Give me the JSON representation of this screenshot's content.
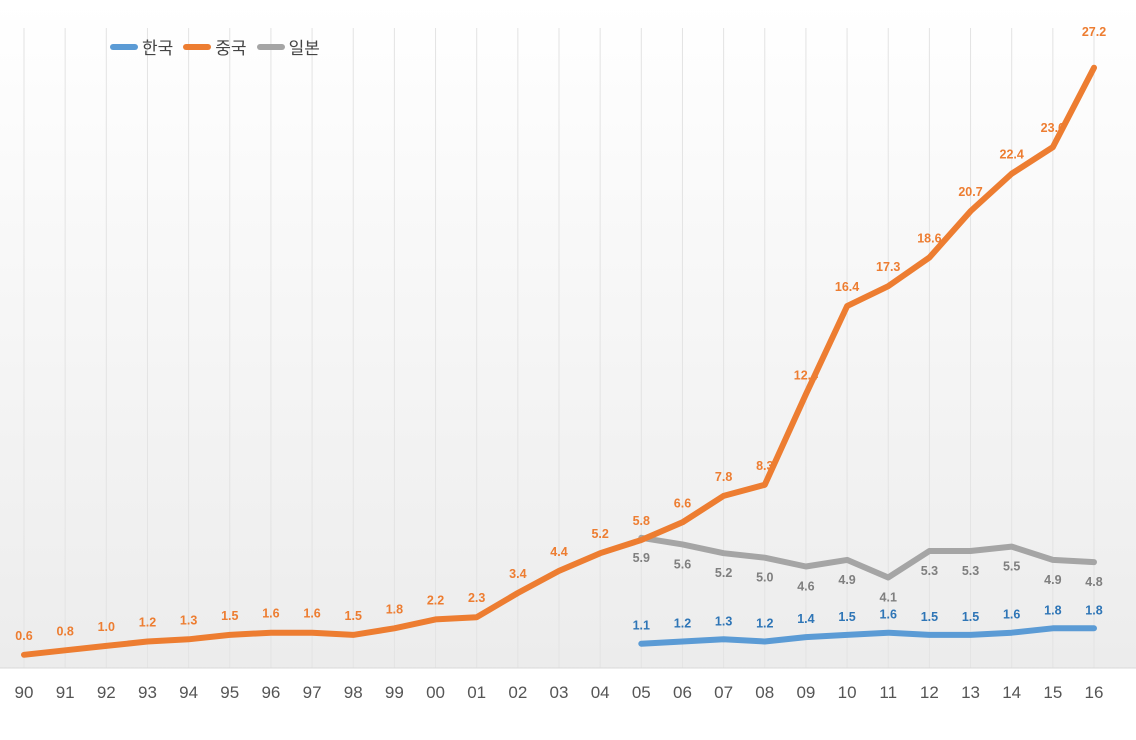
{
  "chart_data": {
    "type": "line",
    "title": "",
    "xlabel": "",
    "ylabel": "",
    "ylim": [
      0,
      29
    ],
    "grid": "vertical-light",
    "legend_position": "top-left",
    "categories": [
      "90",
      "91",
      "92",
      "93",
      "94",
      "95",
      "96",
      "97",
      "98",
      "99",
      "00",
      "01",
      "02",
      "03",
      "04",
      "05",
      "06",
      "07",
      "08",
      "09",
      "10",
      "11",
      "12",
      "13",
      "14",
      "15",
      "16"
    ],
    "series": [
      {
        "name": "한국",
        "color": "#5b9bd5",
        "label_color": "#2e75b6",
        "values": [
          null,
          null,
          null,
          null,
          null,
          null,
          null,
          null,
          null,
          null,
          null,
          null,
          null,
          null,
          null,
          1.1,
          1.2,
          1.3,
          1.2,
          1.4,
          1.5,
          1.6,
          1.5,
          1.5,
          1.6,
          1.8,
          1.8
        ],
        "labels": [
          "",
          "",
          "",
          "",
          "",
          "",
          "",
          "",
          "",
          "",
          "",
          "",
          "",
          "",
          "",
          "1.1",
          "1.2",
          "1.3",
          "1.2",
          "1.4",
          "1.5",
          "1.6",
          "1.5",
          "1.5",
          "1.6",
          "1.8",
          "1.8"
        ]
      },
      {
        "name": "중국",
        "color": "#ed7d31",
        "label_color": "#ed7d31",
        "values": [
          0.6,
          0.8,
          1.0,
          1.2,
          1.3,
          1.5,
          1.6,
          1.6,
          1.5,
          1.8,
          2.2,
          2.3,
          3.4,
          4.4,
          5.2,
          5.8,
          6.6,
          7.8,
          8.3,
          12.4,
          16.4,
          17.3,
          18.6,
          20.7,
          22.4,
          23.6,
          27.2
        ],
        "labels": [
          "0.6",
          "0.8",
          "1.0",
          "1.2",
          "1.3",
          "1.5",
          "1.6",
          "1.6",
          "1.5",
          "1.8",
          "2.2",
          "2.3",
          "3.4",
          "4.4",
          "5.2",
          "5.8",
          "6.6",
          "7.8",
          "8.3",
          "12.4",
          "16.4",
          "17.3",
          "18.6",
          "20.7",
          "22.4",
          "23.6",
          "27.2"
        ]
      },
      {
        "name": "일본",
        "color": "#a5a5a5",
        "label_color": "#7f7f7f",
        "values": [
          null,
          null,
          null,
          null,
          null,
          null,
          null,
          null,
          null,
          null,
          null,
          null,
          null,
          null,
          null,
          5.9,
          5.6,
          5.2,
          5.0,
          4.6,
          4.9,
          4.1,
          5.3,
          5.3,
          5.5,
          4.9,
          4.8
        ],
        "labels": [
          "",
          "",
          "",
          "",
          "",
          "",
          "",
          "",
          "",
          "",
          "",
          "",
          "",
          "",
          "",
          "5.9",
          "5.6",
          "5.2",
          "5.0",
          "4.6",
          "4.9",
          "4.1",
          "5.3",
          "5.3",
          "5.5",
          "4.9",
          "4.8"
        ]
      }
    ]
  }
}
